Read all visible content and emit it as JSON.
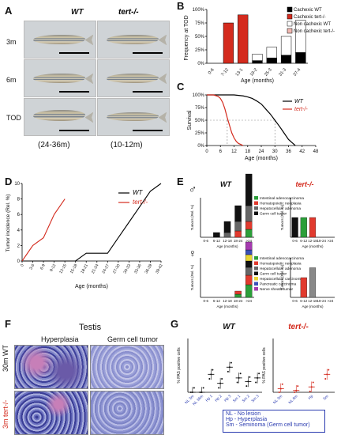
{
  "panel_labels": {
    "a": "A",
    "b": "B",
    "c": "C",
    "d": "D",
    "e": "E",
    "f": "F",
    "g": "G"
  },
  "panel_a": {
    "col_wt": "WT",
    "col_tert": "tert-/-",
    "rows": [
      "3m",
      "6m",
      "TOD"
    ],
    "age_wt": "(24-36m)",
    "age_tert": "(10-12m)"
  },
  "chart_data": [
    {
      "id": "B",
      "type": "bar",
      "ylabel": "Frequency at TOD",
      "xlabel": "Age (months)",
      "categories": [
        "0-6",
        "7-12",
        "13-1",
        "19-2",
        "25-3",
        "31-3",
        "37-4"
      ],
      "yticks": [
        "0%",
        "25%",
        "50%",
        "75%",
        "100%"
      ],
      "ylim": [
        0,
        100
      ],
      "series": [
        {
          "name": "Cachexic WT",
          "color": "#000000",
          "values": [
            0,
            0,
            0,
            5,
            10,
            15,
            20
          ]
        },
        {
          "name": "Cachexic tert-/-",
          "color": "#d42b1e",
          "values": [
            0,
            75,
            90,
            0,
            0,
            0,
            0
          ]
        },
        {
          "name": "Non cachexic WT",
          "color": "#ffffff",
          "values": [
            0,
            0,
            0,
            12,
            20,
            35,
            60
          ]
        },
        {
          "name": "Non cachexic tert-/-",
          "color": "#f1b8b1",
          "values": [
            0,
            0,
            0,
            0,
            0,
            0,
            0
          ]
        }
      ]
    },
    {
      "id": "C",
      "type": "line",
      "ylabel": "Survival",
      "xlabel": "Age  (months)",
      "xticks": [
        "0",
        "6",
        "12",
        "18",
        "24",
        "30",
        "36",
        "42",
        "48"
      ],
      "yticks": [
        "0%",
        "25%",
        "50%",
        "75%",
        "100%"
      ],
      "xlim": [
        0,
        48
      ],
      "ylim": [
        0,
        100
      ],
      "series": [
        {
          "name": "WT",
          "color": "#000000",
          "x": [
            0,
            12,
            16,
            18,
            20,
            22,
            24,
            26,
            28,
            30,
            32,
            34,
            36,
            38,
            39
          ],
          "y": [
            100,
            100,
            98,
            96,
            93,
            88,
            82,
            72,
            62,
            50,
            38,
            25,
            12,
            4,
            0
          ]
        },
        {
          "name": "tert-/-",
          "color": "#d42b1e",
          "x": [
            0,
            3,
            5,
            6,
            7,
            8,
            9,
            10,
            11,
            12,
            13,
            14,
            15,
            16
          ],
          "y": [
            100,
            100,
            97,
            93,
            85,
            72,
            55,
            40,
            25,
            15,
            8,
            4,
            2,
            0
          ]
        }
      ]
    },
    {
      "id": "D",
      "type": "line",
      "ylabel": "Tumor incidence (Rel. %)",
      "xlabel": "Age  (months)",
      "yticks": [
        "0",
        "2",
        "4",
        "6",
        "8",
        "10"
      ],
      "ylim": [
        0,
        10
      ],
      "xticks": [
        "0",
        "3-6",
        "6-9",
        "9-12",
        "12-15",
        "15-18",
        "18-21",
        "21-24",
        "24-27",
        "27-30",
        "30-33",
        "33-36",
        "36-39",
        "39-42"
      ],
      "series": [
        {
          "name": "WT",
          "color": "#000000",
          "x": [
            0,
            1,
            2,
            3,
            4,
            5,
            6,
            7,
            8,
            9,
            10,
            11,
            12,
            13
          ],
          "y": [
            0,
            0,
            0,
            0,
            0,
            0,
            1,
            1,
            1,
            3,
            5,
            7,
            9,
            10
          ]
        },
        {
          "name": "tert-/-",
          "color": "#d42b1e",
          "x": [
            0,
            1,
            2,
            3,
            4
          ],
          "y": [
            0,
            2,
            3,
            6,
            8
          ]
        }
      ]
    },
    {
      "id": "E-male-WT",
      "type": "bar",
      "title": "WT",
      "ylabel": "Tumors (Rel. %)",
      "xlabel": "Age (months)",
      "categories": [
        "0-6",
        "6-12",
        "12-18",
        "18-24",
        ">24"
      ],
      "legend": [
        "Intestinal adenocarcinoma",
        "Hematopoietic neoplasia",
        "Hepatocellular adenoma",
        "Germ cell tumor"
      ],
      "colors": [
        "#2c9f3a",
        "#e13a2e",
        "#666666",
        "#111111"
      ],
      "stacks": [
        [
          0,
          0,
          0,
          0
        ],
        [
          0,
          0,
          0,
          0.3
        ],
        [
          0,
          0,
          0.3,
          0.7
        ],
        [
          0,
          0.4,
          0.6,
          1.0
        ],
        [
          0.5,
          0.5,
          1.0,
          2.0
        ]
      ]
    },
    {
      "id": "E-male-tert",
      "type": "bar",
      "title": "tert-/-",
      "ylabel": "Tumors (Rel. %)",
      "xlabel": "Age (months)",
      "categories": [
        "0-6",
        "6-12",
        "12-18",
        "18-24",
        ">24"
      ],
      "values": [
        2,
        2,
        2,
        0,
        0
      ],
      "colors": [
        "#111111",
        "#2c9f3a",
        "#e13a2e"
      ]
    },
    {
      "id": "E-female-WT",
      "type": "bar",
      "ylabel": "Tumors (Rel. %)",
      "xlabel": "Age (months)",
      "categories": [
        "0-6",
        "6-12",
        "12-18",
        "18-24",
        ">24"
      ],
      "legend": [
        "Intestinal adenocarcinoma",
        "Hematopoietic neoplasia",
        "Hepatocellular adenoma",
        "Germ cell tumor",
        "Hepatocellular carcinoma",
        "Pancreatic carcinoma",
        "Nerve sheath tumor"
      ],
      "colors": [
        "#2c9f3a",
        "#e13a2e",
        "#666666",
        "#111111",
        "#e8d534",
        "#3a4fb8",
        "#a53ab0"
      ],
      "stacks": [
        [
          0,
          0,
          0,
          0,
          0,
          0,
          0
        ],
        [
          0,
          0,
          0,
          0,
          0,
          0,
          0
        ],
        [
          0,
          0,
          0,
          0,
          0,
          0,
          0
        ],
        [
          0.2,
          0.2,
          0,
          0,
          0,
          0,
          0
        ],
        [
          0.8,
          0.6,
          0.5,
          0.4,
          0.4,
          0.3,
          0.5
        ]
      ]
    },
    {
      "id": "E-female-tert",
      "type": "bar",
      "ylabel": "Tumors (Rel. %)",
      "xlabel": "Age (months)",
      "categories": [
        "0-6",
        "6-12",
        "12-18",
        "18-24",
        ">24"
      ],
      "values": [
        0,
        2,
        3,
        0,
        0
      ],
      "colors": [
        "#888888",
        "#e13a2e"
      ]
    },
    {
      "id": "G-WT",
      "type": "scatter",
      "title": "WT",
      "ylabel": "% PAS positive cells",
      "categories": [
        "NL 3m",
        "NL 36m",
        "Hp 1",
        "Hp 2",
        "Hp 3",
        "Sm 1",
        "Sm 2",
        "Sm 3"
      ],
      "means": [
        0,
        0,
        10,
        5,
        14,
        8,
        6,
        8
      ],
      "ylim": [
        0,
        30
      ]
    },
    {
      "id": "G-tert",
      "type": "scatter",
      "title": "tert-/-",
      "ylabel": "% PAS positive cells",
      "categories": [
        "NL 3m",
        "NL 6m",
        "Hp",
        "Sm"
      ],
      "means": [
        2,
        1,
        3,
        10
      ],
      "ylim": [
        0,
        30
      ]
    }
  ],
  "panel_e": {
    "male_symbol": "♂",
    "female_symbol": "♀",
    "wt_title": "WT",
    "tert_title": "tert-/-"
  },
  "panel_f": {
    "title": "Testis",
    "col1": "Hyperplasia",
    "col2": "Germ cell tumor",
    "row1": "30m WT",
    "row2": "3m tert-/-"
  },
  "panel_g": {
    "wt_title": "WT",
    "tert_title": "tert-/-",
    "legend": [
      "NL - No lesion",
      "Hp - Hyperplasia",
      "Sm - Seminoma (Germ cell tumor)"
    ]
  },
  "colors": {
    "red": "#d42b1e",
    "black": "#000000",
    "blue": "#2a3bb0"
  }
}
